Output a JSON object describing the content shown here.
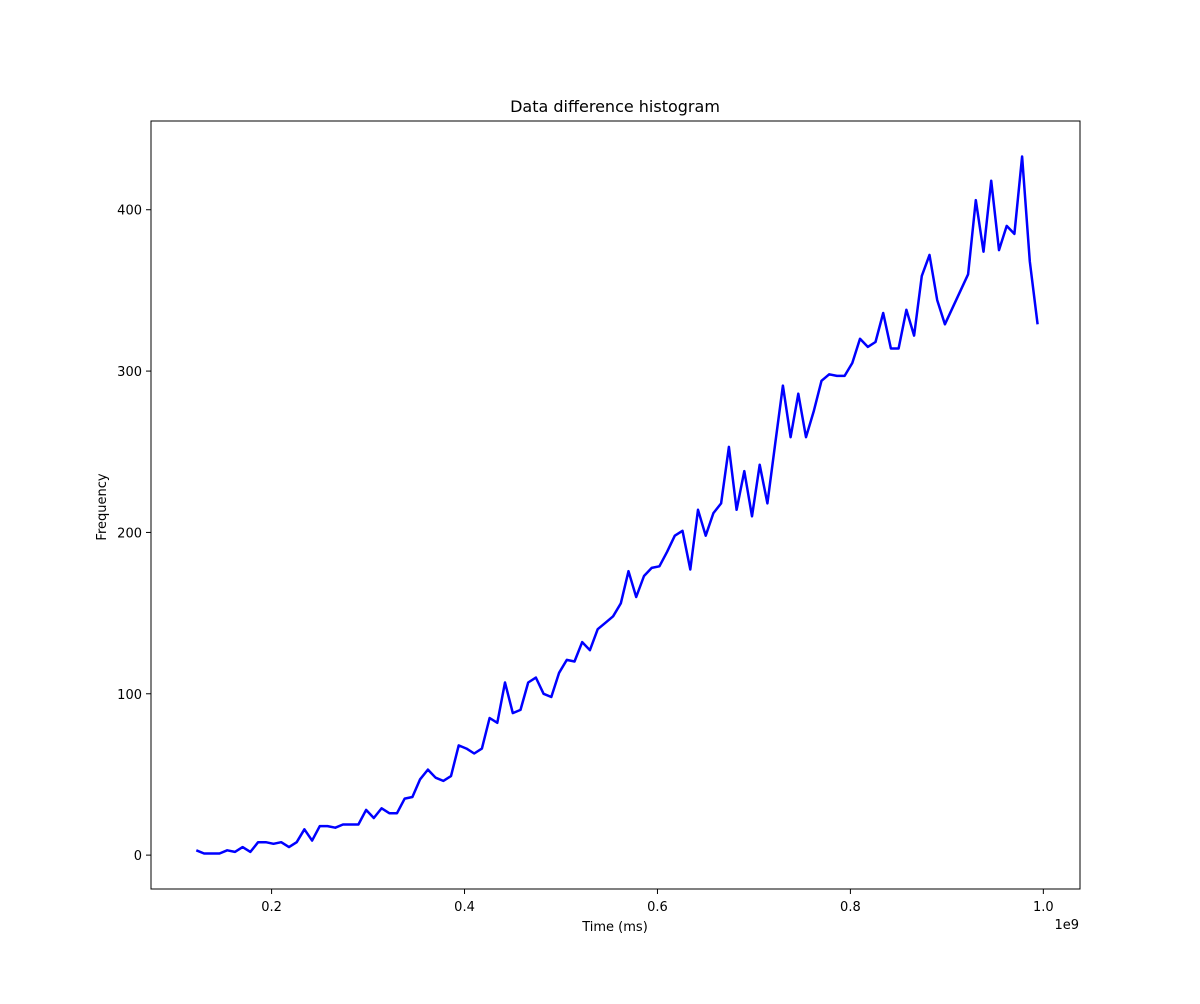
{
  "chart_data": {
    "type": "line",
    "title": "Data difference histogram",
    "xlabel": "Time (ms)",
    "ylabel": "Frequency",
    "x_offset_label": "1e9",
    "x_scale": 1000000000,
    "xlim": [
      0.075,
      1.038
    ],
    "ylim": [
      -21,
      455
    ],
    "x_ticks": [
      0.2,
      0.4,
      0.6,
      0.8,
      1.0
    ],
    "x_tick_labels": [
      "0.2",
      "0.4",
      "0.6",
      "0.8",
      "1.0"
    ],
    "y_ticks": [
      0,
      100,
      200,
      300,
      400
    ],
    "y_tick_labels": [
      "0",
      "100",
      "200",
      "300",
      "400"
    ],
    "grid": false,
    "legend": "none",
    "series": [
      {
        "color": "#0000ff",
        "x": [
          0.122,
          0.13,
          0.138,
          0.146,
          0.154,
          0.162,
          0.17,
          0.178,
          0.186,
          0.194,
          0.202,
          0.21,
          0.218,
          0.226,
          0.234,
          0.242,
          0.25,
          0.258,
          0.266,
          0.274,
          0.282,
          0.29,
          0.298,
          0.306,
          0.314,
          0.322,
          0.33,
          0.338,
          0.346,
          0.354,
          0.362,
          0.37,
          0.378,
          0.386,
          0.394,
          0.402,
          0.41,
          0.418,
          0.426,
          0.434,
          0.442,
          0.45,
          0.458,
          0.466,
          0.474,
          0.482,
          0.49,
          0.498,
          0.506,
          0.514,
          0.522,
          0.53,
          0.538,
          0.546,
          0.554,
          0.562,
          0.57,
          0.578,
          0.586,
          0.594,
          0.602,
          0.61,
          0.618,
          0.626,
          0.634,
          0.642,
          0.65,
          0.658,
          0.666,
          0.674,
          0.682,
          0.69,
          0.698,
          0.706,
          0.714,
          0.722,
          0.73,
          0.738,
          0.746,
          0.754,
          0.762,
          0.77,
          0.778,
          0.786,
          0.794,
          0.802,
          0.81,
          0.818,
          0.826,
          0.834,
          0.842,
          0.85,
          0.858,
          0.866,
          0.874,
          0.882,
          0.89,
          0.898,
          0.922,
          0.93,
          0.938,
          0.946,
          0.954,
          0.962,
          0.97,
          0.978,
          0.986,
          0.994
        ],
        "y": [
          3,
          1,
          1,
          1,
          3,
          2,
          5,
          2,
          8,
          8,
          7,
          8,
          5,
          8,
          16,
          9,
          18,
          18,
          17,
          19,
          19,
          19,
          28,
          23,
          29,
          26,
          26,
          35,
          36,
          47,
          53,
          48,
          46,
          49,
          68,
          66,
          63,
          66,
          85,
          82,
          107,
          88,
          90,
          107,
          110,
          100,
          98,
          113,
          121,
          120,
          132,
          127,
          140,
          144,
          148,
          156,
          176,
          160,
          173,
          178,
          179,
          188,
          198,
          201,
          177,
          214,
          198,
          212,
          218,
          253,
          214,
          238,
          210,
          242,
          218,
          255,
          291,
          259,
          286,
          259,
          275,
          294,
          298,
          297,
          297,
          305,
          320,
          315,
          318,
          336,
          314,
          314,
          338,
          322,
          359,
          372,
          344,
          329,
          360,
          406,
          374,
          418,
          375,
          390,
          385,
          433,
          368,
          329
        ]
      }
    ]
  }
}
